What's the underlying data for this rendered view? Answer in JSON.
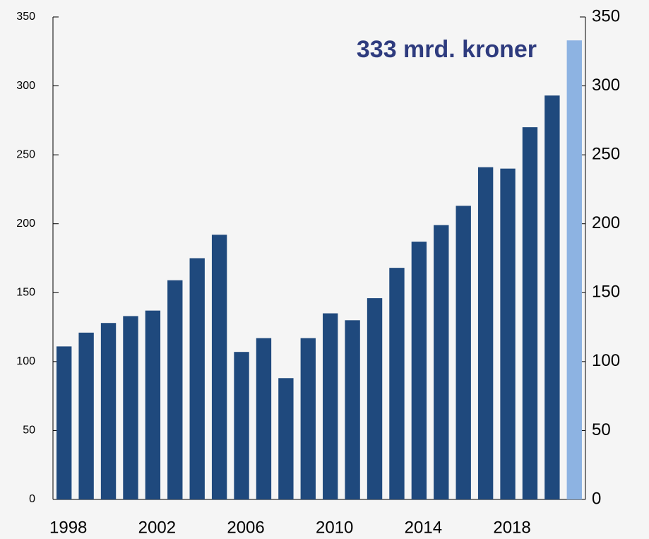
{
  "chart_data": {
    "type": "bar",
    "annotation": "333 mrd. kroner",
    "categories": [
      "1998",
      null,
      null,
      null,
      "2002",
      null,
      null,
      null,
      "2006",
      null,
      null,
      null,
      "2010",
      null,
      null,
      null,
      "2014",
      null,
      null,
      null,
      "2018",
      null,
      null,
      null
    ],
    "values": [
      111,
      121,
      128,
      133,
      137,
      159,
      175,
      192,
      107,
      117,
      88,
      117,
      135,
      130,
      146,
      168,
      187,
      199,
      213,
      241,
      240,
      270,
      293,
      333
    ],
    "colors": [
      "#1f497d",
      "#1f497d",
      "#1f497d",
      "#1f497d",
      "#1f497d",
      "#1f497d",
      "#1f497d",
      "#1f497d",
      "#1f497d",
      "#1f497d",
      "#1f497d",
      "#1f497d",
      "#1f497d",
      "#1f497d",
      "#1f497d",
      "#1f497d",
      "#1f497d",
      "#1f497d",
      "#1f497d",
      "#1f497d",
      "#1f497d",
      "#1f497d",
      "#1f497d",
      "#8db3e2"
    ],
    "ylim": [
      0,
      350
    ],
    "yticks": [
      0,
      50,
      100,
      150,
      200,
      250,
      300,
      350
    ],
    "y2lim": [
      0,
      350
    ],
    "y2ticks": [
      0,
      50,
      100,
      150,
      200,
      250,
      300,
      350
    ],
    "grid": false
  }
}
